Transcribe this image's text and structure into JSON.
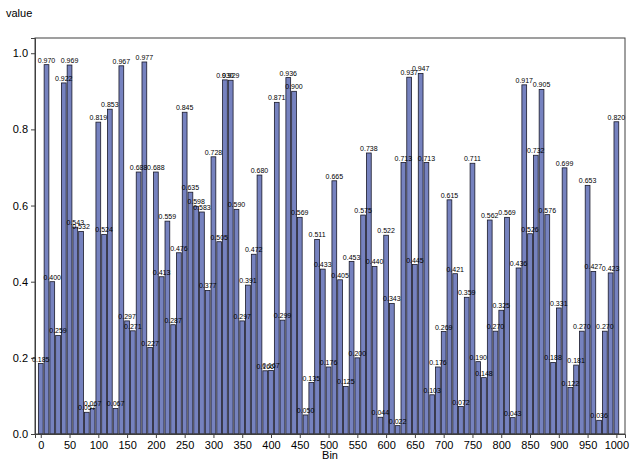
{
  "chart_data": {
    "type": "bar",
    "xlabel": "Bin",
    "ylabel": "value",
    "x": [
      0,
      10,
      20,
      30,
      40,
      50,
      60,
      70,
      80,
      90,
      100,
      110,
      120,
      130,
      140,
      150,
      160,
      170,
      180,
      190,
      200,
      210,
      220,
      230,
      240,
      250,
      260,
      270,
      280,
      290,
      300,
      310,
      320,
      330,
      340,
      350,
      360,
      370,
      380,
      390,
      400,
      410,
      420,
      430,
      440,
      450,
      460,
      470,
      480,
      490,
      500,
      510,
      520,
      530,
      540,
      550,
      560,
      570,
      580,
      590,
      600,
      610,
      620,
      630,
      640,
      650,
      660,
      670,
      680,
      690,
      700,
      710,
      720,
      730,
      740,
      750,
      760,
      770,
      780,
      790,
      800,
      810,
      820,
      830,
      840,
      850,
      860,
      870,
      880,
      890,
      900,
      910,
      920,
      930,
      940,
      950,
      960,
      970,
      980,
      990,
      1000
    ],
    "values": [
      0.185,
      0.97,
      0.4,
      0.259,
      0.922,
      0.969,
      0.543,
      0.532,
      0.057,
      0.067,
      0.819,
      0.524,
      0.853,
      0.067,
      0.967,
      0.297,
      0.271,
      0.688,
      0.977,
      0.227,
      0.688,
      0.413,
      0.559,
      0.287,
      0.476,
      0.845,
      0.635,
      0.598,
      0.583,
      0.377,
      0.728,
      0.505,
      0.93,
      0.929,
      0.59,
      0.297,
      0.391,
      0.472,
      0.68,
      0.166,
      0.167,
      0.871,
      0.299,
      0.936,
      0.9,
      0.569,
      0.05,
      0.135,
      0.511,
      0.433,
      0.176,
      0.665,
      0.405,
      0.125,
      0.453,
      0.2,
      0.575,
      0.738,
      0.44,
      0.044,
      0.522,
      0.343,
      0.022,
      0.713,
      0.937,
      0.445,
      0.947,
      0.713,
      0.103,
      0.176,
      0.269,
      0.615,
      0.421,
      0.072,
      0.359,
      0.711,
      0.19,
      0.148,
      0.562,
      0.27,
      0.325,
      0.569,
      0.043,
      0.436,
      0.917,
      0.526,
      0.732,
      0.905,
      0.576,
      0.188,
      0.331,
      0.699,
      0.122,
      0.181,
      0.27,
      0.653,
      0.427,
      0.036,
      0.27,
      0.423,
      0.82
    ],
    "value_labels": [
      "0.185",
      "0.970",
      "0.400",
      "0.259",
      "0.922",
      "0.969",
      "0.543",
      "0.532",
      "0.057",
      "0.067",
      "0.819",
      "0.524",
      "0.853",
      "0.067",
      "0.967",
      "0.297",
      "0.271",
      "0.688",
      "0.977",
      "0.227",
      "0.688",
      "0.413",
      "0.559",
      "0.287",
      "0.476",
      "0.845",
      "0.635",
      "0.598",
      "0.583",
      "0.377",
      "0.728",
      "0.505",
      "0.930",
      "0.929",
      "0.590",
      "0.297",
      "0.391",
      "0.472",
      "0.680",
      "0.166",
      "0.167",
      "0.871",
      "0.299",
      "0.936",
      "0.900",
      "0.569",
      "0.050",
      "0.135",
      "0.511",
      "0.433",
      "0.176",
      "0.665",
      "0.405",
      "0.125",
      "0.453",
      "0.200",
      "0.575",
      "0.738",
      "0.440",
      "0.044",
      "0.522",
      "0.343",
      "0.022",
      "0.713",
      "0.937",
      "0.445",
      "0.947",
      "0.713",
      "0.103",
      "0.176",
      "0.269",
      "0.615",
      "0.421",
      "0.072",
      "0.359",
      "0.711",
      "0.190",
      "0.148",
      "0.562",
      "0.270",
      "0.325",
      "0.569",
      "0.043",
      "0.436",
      "0.917",
      "0.526",
      "0.732",
      "0.905",
      "0.576",
      "0.188",
      "0.331",
      "0.699",
      "0.122",
      "0.181",
      "0.270",
      "0.653",
      "0.427",
      "0.036",
      "0.270",
      "0.423",
      "0.820"
    ],
    "color": "#7682bf",
    "data_labels": true,
    "xlim": [
      -10,
      1015
    ],
    "ylim": [
      0,
      1.04
    ],
    "xticks": [
      0,
      50,
      100,
      150,
      200,
      250,
      300,
      350,
      400,
      450,
      500,
      550,
      600,
      650,
      700,
      750,
      800,
      850,
      900,
      950,
      1000
    ],
    "yticks": [
      {
        "value": 0,
        "label": "0.0"
      },
      0.2,
      0.4,
      0.6,
      0.8,
      {
        "value": 1,
        "label": "1.0"
      }
    ]
  }
}
